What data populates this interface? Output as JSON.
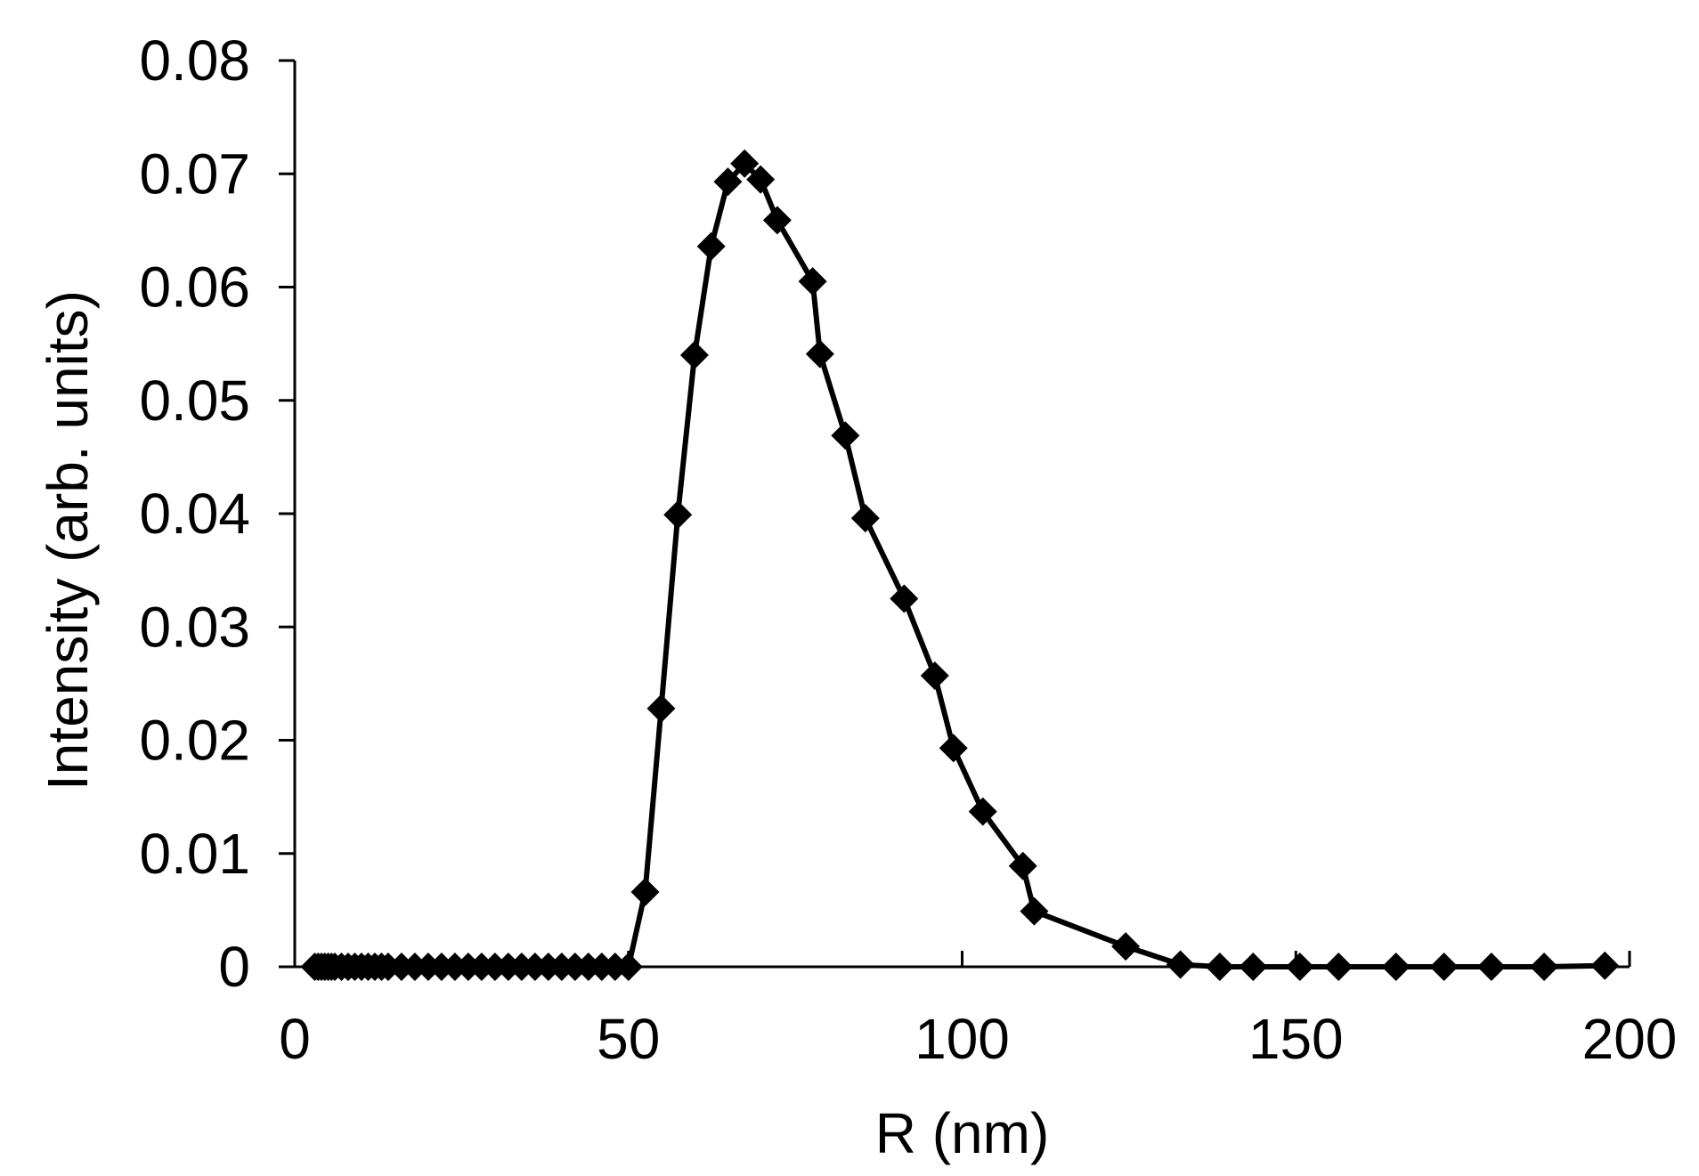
{
  "chart_data": {
    "type": "line",
    "title": "",
    "xlabel": "R (nm)",
    "ylabel": "Intensity (arb. units)",
    "xlim": [
      0,
      200
    ],
    "ylim": [
      0,
      0.08
    ],
    "x_ticks": [
      0,
      50,
      100,
      150,
      200
    ],
    "x_tick_labels": [
      "0",
      "50",
      "100",
      "150",
      "200"
    ],
    "y_ticks": [
      0,
      0.01,
      0.02,
      0.03,
      0.04,
      0.05,
      0.06,
      0.07,
      0.08
    ],
    "y_tick_labels": [
      "0",
      "0.01",
      "0.02",
      "0.03",
      "0.04",
      "0.05",
      "0.06",
      "0.07",
      "0.08"
    ],
    "grid": false,
    "legend": "none",
    "colors": {
      "line": "#000000",
      "marker": "#000000"
    },
    "marker": "diamond",
    "series": [
      {
        "x": [
          3,
          3.5,
          4,
          4.5,
          5,
          5.5,
          6,
          7,
          8,
          9,
          10,
          11,
          12,
          13,
          14,
          16,
          18,
          20,
          22,
          24,
          26,
          28,
          30,
          32,
          34,
          36,
          38,
          40,
          42,
          44,
          46,
          48,
          50,
          52.5,
          54.9,
          57.4,
          59.9,
          62.4,
          64.9,
          67.4,
          69.8,
          72.3,
          77.6,
          78.7,
          82.5,
          85.5,
          91.3,
          95.9,
          98.7,
          103.1,
          109.1,
          110.8,
          124.5,
          132.7,
          138.6,
          143.6,
          150.6,
          156.4,
          165,
          172.2,
          179.3,
          187.2,
          196.3
        ],
        "y": [
          0,
          0,
          0,
          0,
          0,
          0,
          0,
          0,
          0,
          0,
          0,
          0,
          0,
          0,
          0,
          0,
          0,
          0,
          0,
          0,
          0,
          0,
          0,
          0,
          0,
          0,
          0,
          0,
          0,
          0,
          0,
          0,
          0,
          0.0066,
          0.0228,
          0.0399,
          0.054,
          0.0636,
          0.0693,
          0.0709,
          0.0695,
          0.0659,
          0.0605,
          0.0541,
          0.0469,
          0.0396,
          0.0325,
          0.0257,
          0.0193,
          0.0137,
          0.0089,
          0.0049,
          0.0018,
          0.0002,
          0,
          0,
          0,
          0,
          0,
          0,
          0,
          0,
          0.0001
        ]
      }
    ]
  }
}
